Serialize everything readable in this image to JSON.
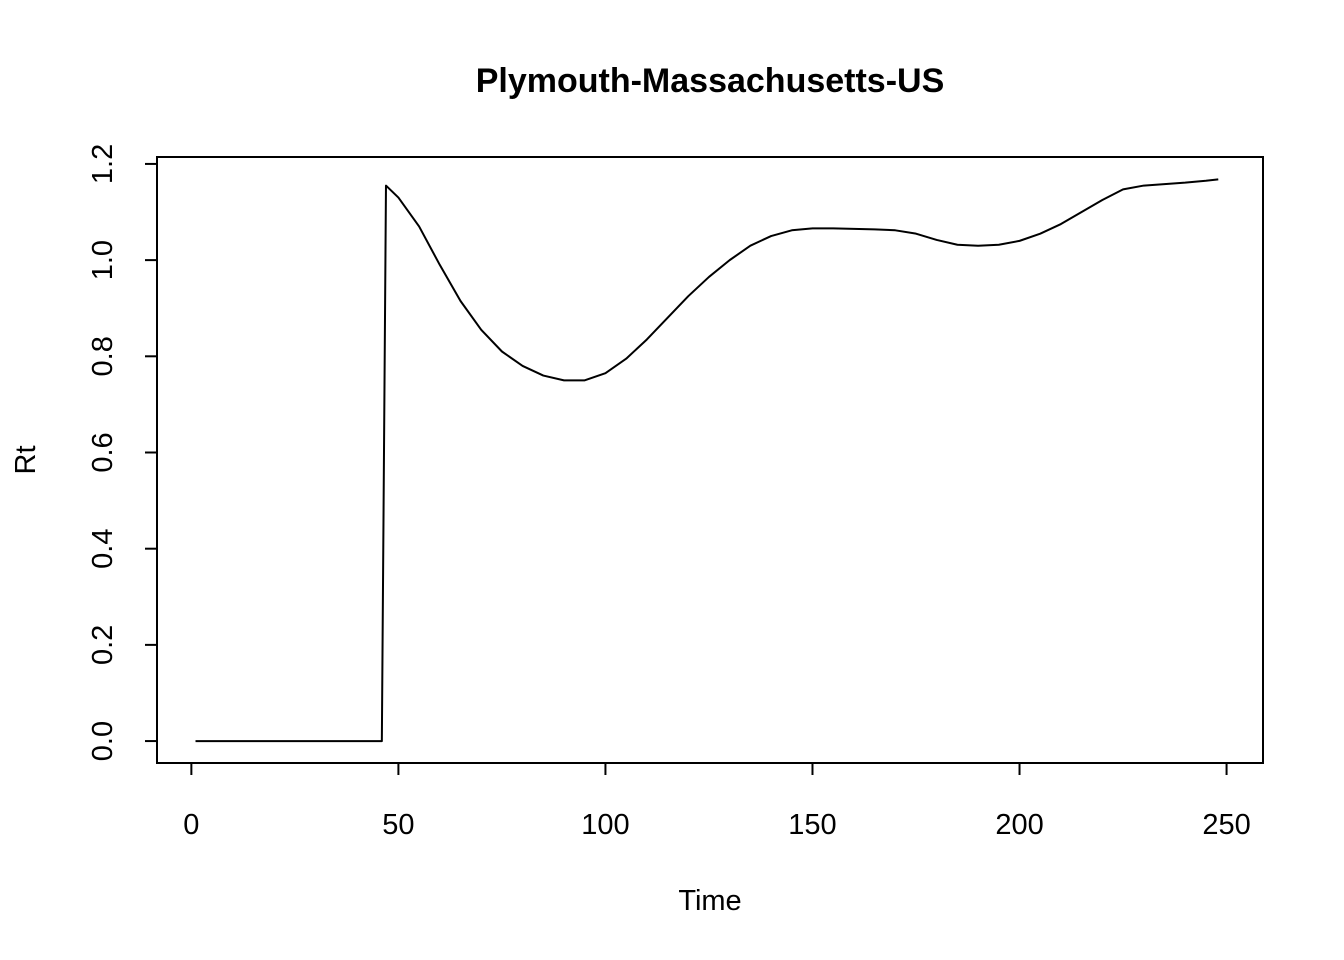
{
  "chart_data": {
    "type": "line",
    "title": "Plymouth-Massachusetts-US",
    "xlabel": "Time",
    "ylabel": "Rt",
    "xlim": [
      -8.3,
      258.8
    ],
    "ylim": [
      -0.0456,
      1.2144
    ],
    "x_ticks": [
      0,
      50,
      100,
      150,
      200,
      250
    ],
    "y_ticks": [
      0.0,
      0.2,
      0.4,
      0.6,
      0.8,
      1.0,
      1.2
    ],
    "x_tick_labels": [
      "0",
      "50",
      "100",
      "150",
      "200",
      "250"
    ],
    "y_tick_labels": [
      "0.0",
      "0.2",
      "0.4",
      "0.6",
      "0.8",
      "1.0",
      "1.2"
    ],
    "grid": false,
    "legend": "none",
    "series": [
      {
        "color": "#000000",
        "x": [
          1,
          10,
          20,
          30,
          40,
          46,
          47,
          50,
          55,
          60,
          65,
          70,
          75,
          80,
          85,
          90,
          95,
          100,
          105,
          110,
          115,
          120,
          125,
          130,
          135,
          140,
          145,
          150,
          155,
          160,
          165,
          170,
          175,
          180,
          185,
          190,
          195,
          200,
          205,
          210,
          215,
          220,
          225,
          230,
          235,
          240,
          245,
          248
        ],
        "y": [
          0.0,
          0.0,
          0.0,
          0.0,
          0.0,
          0.0,
          1.155,
          1.13,
          1.07,
          0.99,
          0.915,
          0.855,
          0.81,
          0.78,
          0.76,
          0.75,
          0.75,
          0.765,
          0.795,
          0.835,
          0.88,
          0.925,
          0.965,
          1.0,
          1.03,
          1.05,
          1.062,
          1.066,
          1.066,
          1.065,
          1.064,
          1.062,
          1.055,
          1.042,
          1.032,
          1.03,
          1.032,
          1.04,
          1.055,
          1.075,
          1.1,
          1.125,
          1.147,
          1.155,
          1.158,
          1.161,
          1.165,
          1.168
        ]
      }
    ]
  }
}
